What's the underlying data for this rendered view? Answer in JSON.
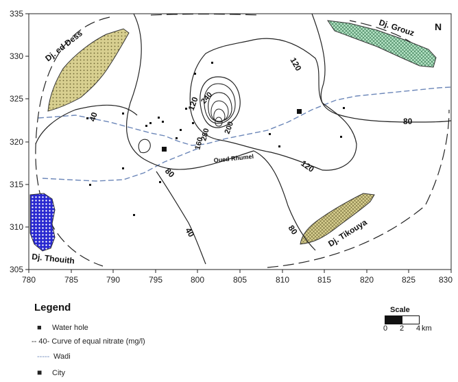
{
  "axes": {
    "x_ticks": [
      "780",
      "785",
      "790",
      "795",
      "800",
      "805",
      "810",
      "815",
      "820",
      "825",
      "830"
    ],
    "y_ticks": [
      "335",
      "330",
      "325",
      "320",
      "315",
      "310",
      "305"
    ]
  },
  "mountains": {
    "ed_dess": "Dj. ed Dess",
    "grouz": "Dj. Grouz",
    "tikouya": "Dj. Tikouya",
    "thouith": "Dj. Thouith"
  },
  "wadi_label": "Oued Rhumel",
  "north_symbol": "N",
  "contour_labels": {
    "c40a": "40",
    "c40b": "40",
    "c80a": "80",
    "c80b": "80",
    "c80c": "80",
    "c120a": "120",
    "c120b": "120",
    "c120c": "120",
    "c160": "160",
    "c200": "200",
    "c240": "240",
    "c280": "280"
  },
  "legend": {
    "title": "Legend",
    "water_hole": "Water hole",
    "curve_symbol": "-- 40-",
    "curve": "Curve of equal nitrate (mg/l)",
    "wadi": "Wadi",
    "city": "City"
  },
  "scale": {
    "title": "Scale",
    "l0": "0",
    "l2": "2",
    "l4": "4",
    "unit": "km"
  },
  "colors": {
    "wadi": "#6b86b8",
    "ed_dess_fill": "#d8cf90",
    "grouz_fill": "#b8e6c8",
    "tikouya_fill": "#d8cf90",
    "thouith_fill": "#2828d0"
  }
}
